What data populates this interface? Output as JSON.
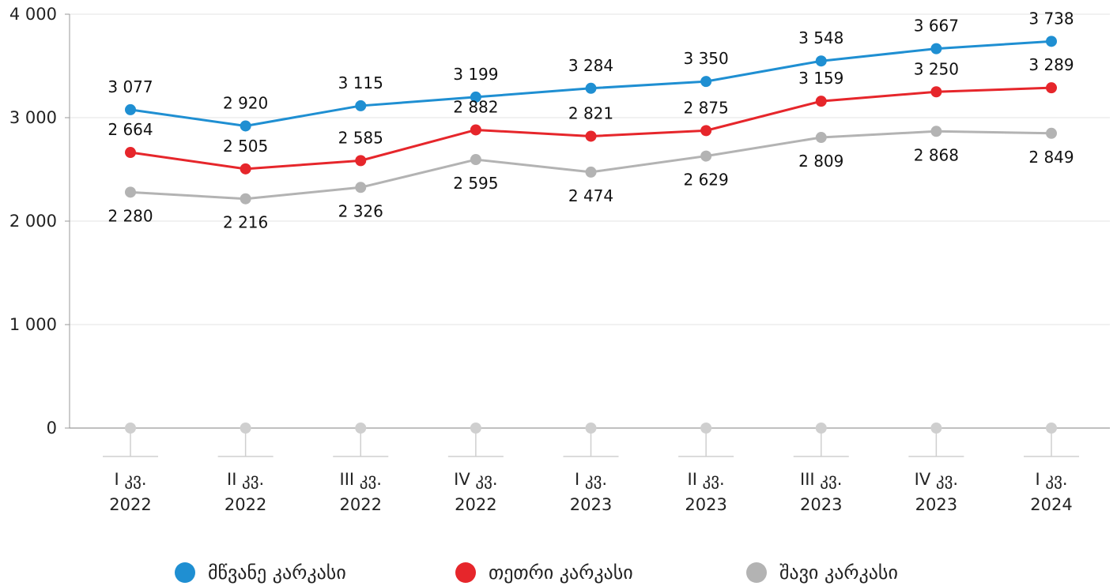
{
  "chart_data": {
    "type": "line",
    "title": "",
    "xlabel": "",
    "ylabel": "",
    "ylim": [
      0,
      4000
    ],
    "y_ticks": [
      0,
      1000,
      2000,
      3000,
      4000
    ],
    "y_tick_labels": [
      "0",
      "1 000",
      "2 000",
      "3 000",
      "4 000"
    ],
    "grid": true,
    "legend_position": "bottom",
    "categories": [
      [
        "I კვ.",
        "2022"
      ],
      [
        "II კვ.",
        "2022"
      ],
      [
        "III კვ.",
        "2022"
      ],
      [
        "IV კვ.",
        "2022"
      ],
      [
        "I კვ.",
        "2023"
      ],
      [
        "II კვ.",
        "2023"
      ],
      [
        "III კვ.",
        "2023"
      ],
      [
        "IV კვ.",
        "2023"
      ],
      [
        "I კვ.",
        "2024"
      ]
    ],
    "series": [
      {
        "name": "მწვანე კარკასი",
        "color": "#1f8fd2",
        "values": [
          3077,
          2920,
          3115,
          3199,
          3284,
          3350,
          3548,
          3667,
          3738
        ],
        "labels": [
          "3 077",
          "2 920",
          "3 115",
          "3 199",
          "3 284",
          "3 350",
          "3 548",
          "3 667",
          "3 738"
        ],
        "label_position": "above"
      },
      {
        "name": "თეთრი კარკასი",
        "color": "#e6262b",
        "values": [
          2664,
          2505,
          2585,
          2882,
          2821,
          2875,
          3159,
          3250,
          3289
        ],
        "labels": [
          "2 664",
          "2 505",
          "2 585",
          "2 882",
          "2 821",
          "2 875",
          "3 159",
          "3 250",
          "3 289"
        ],
        "label_position": "above"
      },
      {
        "name": "შავი კარკასი",
        "color": "#b3b3b3",
        "values": [
          2280,
          2216,
          2326,
          2595,
          2474,
          2629,
          2809,
          2868,
          2849
        ],
        "labels": [
          "2 280",
          "2 216",
          "2 326",
          "2 595",
          "2 474",
          "2 629",
          "2 809",
          "2 868",
          "2 849"
        ],
        "label_position": "below"
      }
    ],
    "baseline_marker_color": "#cfcfcf"
  }
}
